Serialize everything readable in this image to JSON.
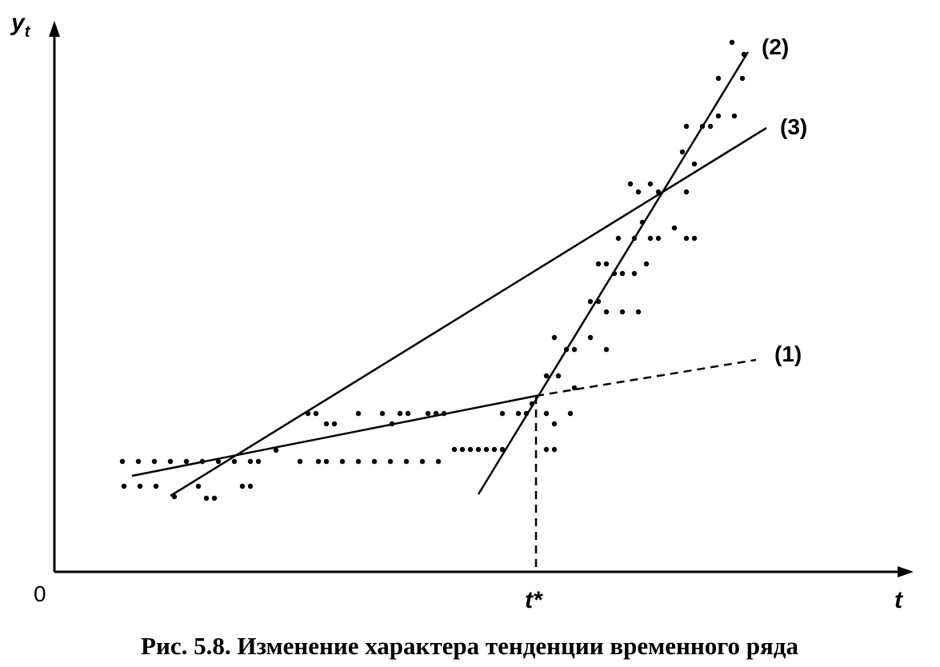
{
  "axes": {
    "y_label": "y",
    "y_label_subscript": "t",
    "x_label": "t",
    "origin": "0",
    "break_point": "t*"
  },
  "lines": [
    {
      "label": "(1)"
    },
    {
      "label": "(2)"
    },
    {
      "label": "(3)"
    }
  ],
  "caption": {
    "number": "Рис. 5.8.",
    "text": "Изменение характера тенденции временного ряда"
  }
}
